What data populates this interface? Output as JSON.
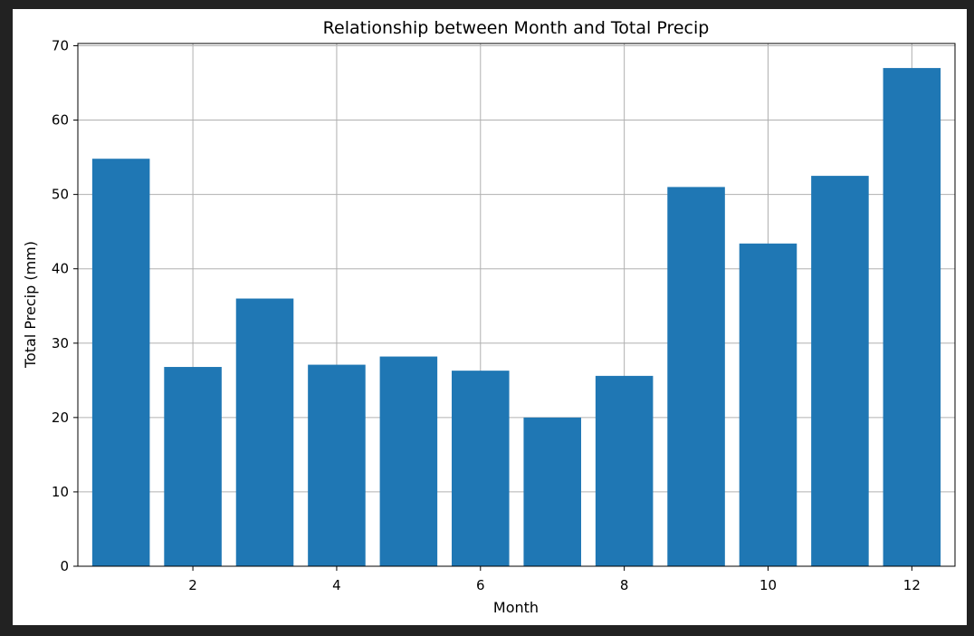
{
  "colors": {
    "background": "#222222",
    "figure": "#ffffff",
    "bar": "#1f77b4",
    "grid": "#b0b0b0",
    "axis": "#000000"
  },
  "chart_data": {
    "type": "bar",
    "title": "Relationship between Month and Total Precip",
    "xlabel": "Month",
    "ylabel": "Total Precip (mm)",
    "x": [
      1,
      2,
      3,
      4,
      5,
      6,
      7,
      8,
      9,
      10,
      11,
      12
    ],
    "values": [
      54.8,
      26.8,
      36.0,
      27.1,
      28.2,
      26.3,
      20.0,
      25.6,
      51.0,
      43.4,
      52.5,
      67.0
    ],
    "xlim": [
      0.4,
      12.6
    ],
    "ylim": [
      0,
      70.3
    ],
    "xticks": [
      2,
      4,
      6,
      8,
      10,
      12
    ],
    "yticks": [
      0,
      10,
      20,
      30,
      40,
      50,
      60,
      70
    ],
    "grid": true,
    "legend": false
  }
}
